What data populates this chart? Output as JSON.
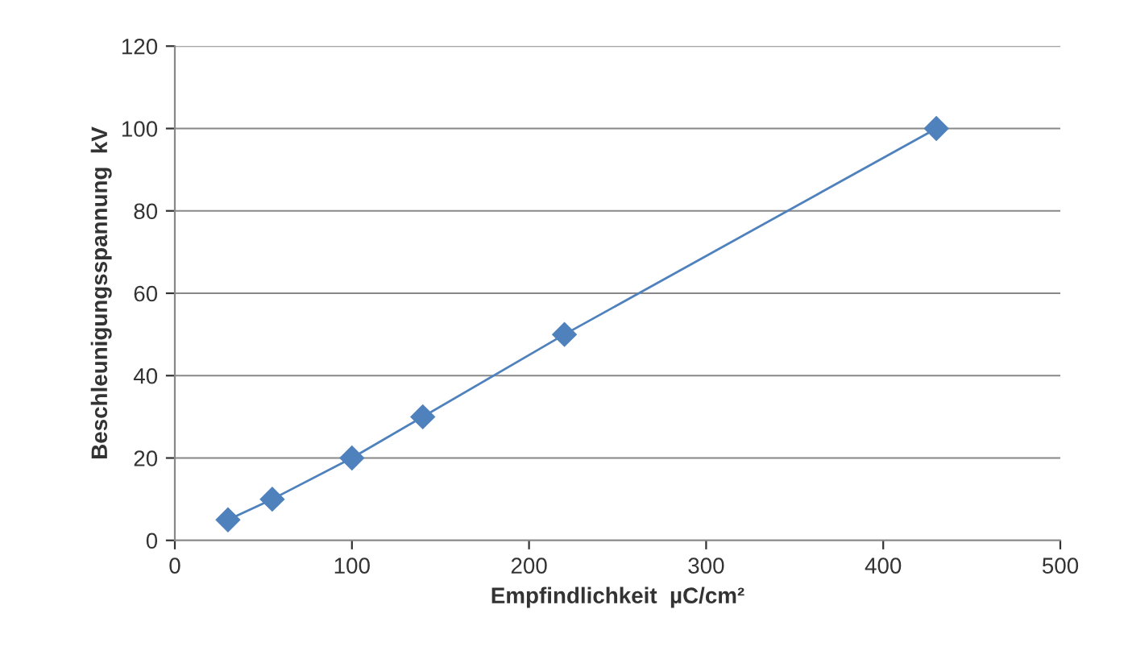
{
  "chart_data": {
    "type": "line",
    "xlabel": "Empfindlichkeit  µC/cm²",
    "ylabel": "Beschleunigungsspannung  kV",
    "series": [
      {
        "color": "#4f81bd",
        "x": [
          30,
          55,
          100,
          140,
          220,
          430
        ],
        "values": [
          5,
          10,
          20,
          30,
          50,
          100
        ]
      }
    ],
    "xlim": [
      0,
      500
    ],
    "xticks": [
      0,
      100,
      200,
      300,
      400,
      500
    ],
    "ylim": [
      0,
      120
    ],
    "yticks": [
      0,
      20,
      40,
      60,
      80,
      100,
      120
    ],
    "grid": "y",
    "marker": "diamond",
    "line_style": "solid",
    "legend": false
  }
}
